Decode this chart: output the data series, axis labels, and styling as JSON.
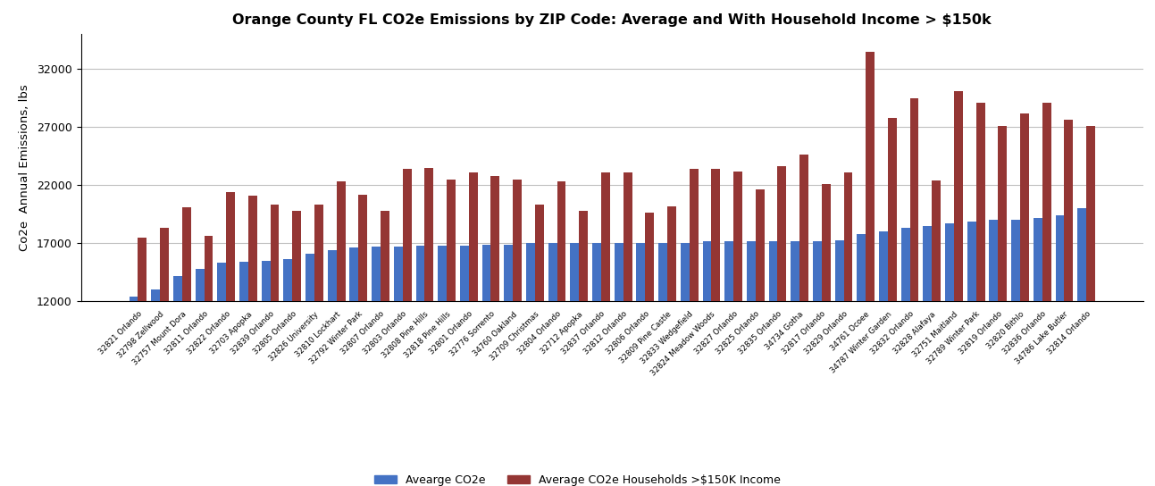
{
  "title": "Orange County FL CO2e Emissions by ZIP Code: Average and With Household Income > $150k",
  "ylabel": "Co2e  Annual Emissions, lbs",
  "legend_blue": "Avearge CO2e",
  "legend_red": "Average CO2e Households >$150K Income",
  "ylim": [
    12000,
    35000
  ],
  "yticks": [
    12000,
    17000,
    22000,
    27000,
    32000
  ],
  "categories": [
    "32821 Orlando",
    "32798 Zellwood",
    "32757 Mount Dora",
    "32811 Orlando",
    "32822 Orlando",
    "32703 Apopka",
    "32839 Orlando",
    "32805 Orlando",
    "32826 University",
    "32810 Lockhart",
    "32792 Winter Park",
    "32807 Orlando",
    "32803 Orlando",
    "32808 Pine Hills",
    "32818 Pine Hills",
    "32801 Orlando",
    "32776 Sorrento",
    "34760 Oakland",
    "32709 Christmas",
    "32804 Orlando",
    "32712 Apopka",
    "32837 Orlando",
    "32812 Orlando",
    "32806 Orlando",
    "32809 Pine Castle",
    "32833 Wedgefield",
    "32824 Meadow Woods",
    "32827 Orlando",
    "32825 Orlando",
    "32835 Orlando",
    "34734 Gotha",
    "32817 Orlando",
    "32829 Orlando",
    "34761 Ocoee",
    "34787 Winter Garden",
    "32832 Orlando",
    "32828 Alafaya",
    "32751 Maitland",
    "32789 Winter Park",
    "32819 Orlando",
    "32820 Bithlo",
    "32836 Orlando",
    "34786 Lake Butler",
    "32814 Orlando"
  ],
  "avg_co2e": [
    12400,
    13000,
    14200,
    14800,
    15300,
    15400,
    15500,
    15600,
    16100,
    16400,
    16600,
    16700,
    16700,
    16750,
    16800,
    16800,
    16850,
    16850,
    17000,
    17000,
    17000,
    17000,
    17050,
    17050,
    17000,
    17050,
    17150,
    17150,
    17150,
    17150,
    17200,
    17200,
    17250,
    17800,
    18000,
    18300,
    18500,
    18700,
    18900,
    19000,
    19000,
    19200,
    19400,
    20000
  ],
  "avg_co2e_150k": [
    17500,
    18300,
    20100,
    17600,
    21400,
    21100,
    20300,
    19800,
    20300,
    22300,
    21200,
    19800,
    23400,
    23500,
    22500,
    23100,
    22800,
    22500,
    20300,
    22300,
    19800,
    23100,
    23100,
    19600,
    20200,
    23400,
    23400,
    23200,
    21600,
    23600,
    24600,
    22100,
    23100,
    33500,
    27800,
    29500,
    22400,
    30100,
    29100,
    27100,
    28200,
    29100,
    27600,
    27100
  ],
  "bar_color_blue": "#4472C4",
  "bar_color_red": "#943634",
  "background_color": "#FFFFFF",
  "grid_color": "#C0C0C0"
}
